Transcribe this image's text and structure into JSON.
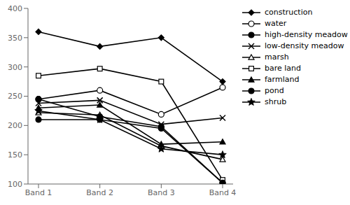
{
  "chart_data": {
    "type": "line",
    "categories": [
      "Band 1",
      "Band 2",
      "Band 3",
      "Band 4"
    ],
    "series": [
      {
        "name": "construction",
        "color": "black",
        "marker": "diamond",
        "values": [
          360,
          335,
          350,
          275
        ]
      },
      {
        "name": "water",
        "color": "black",
        "marker": "circle-open",
        "values": [
          245,
          260,
          219,
          265
        ]
      },
      {
        "name": "high-density meadow",
        "color": "black",
        "marker": "circle",
        "values": [
          210,
          210,
          195,
          102
        ]
      },
      {
        "name": "low-density meadow",
        "color": "black",
        "marker": "x",
        "values": [
          238,
          243,
          202,
          213
        ]
      },
      {
        "name": "marsh",
        "color": "black",
        "marker": "triangle-open",
        "values": [
          222,
          218,
          165,
          142
        ]
      },
      {
        "name": "bare land",
        "color": "black",
        "marker": "square-open",
        "values": [
          285,
          297,
          275,
          107
        ]
      },
      {
        "name": "farmland",
        "color": "black",
        "marker": "triangle",
        "values": [
          230,
          235,
          168,
          172
        ]
      },
      {
        "name": "pond",
        "color": "black",
        "marker": "circle",
        "values": [
          245,
          215,
          198,
          102
        ]
      },
      {
        "name": "shrub",
        "color": "black",
        "marker": "star",
        "values": [
          225,
          210,
          160,
          150
        ]
      }
    ],
    "ylim": [
      100,
      400
    ],
    "yticks": [
      100,
      150,
      200,
      250,
      300,
      350,
      400
    ],
    "grid": false,
    "legend": "right"
  }
}
